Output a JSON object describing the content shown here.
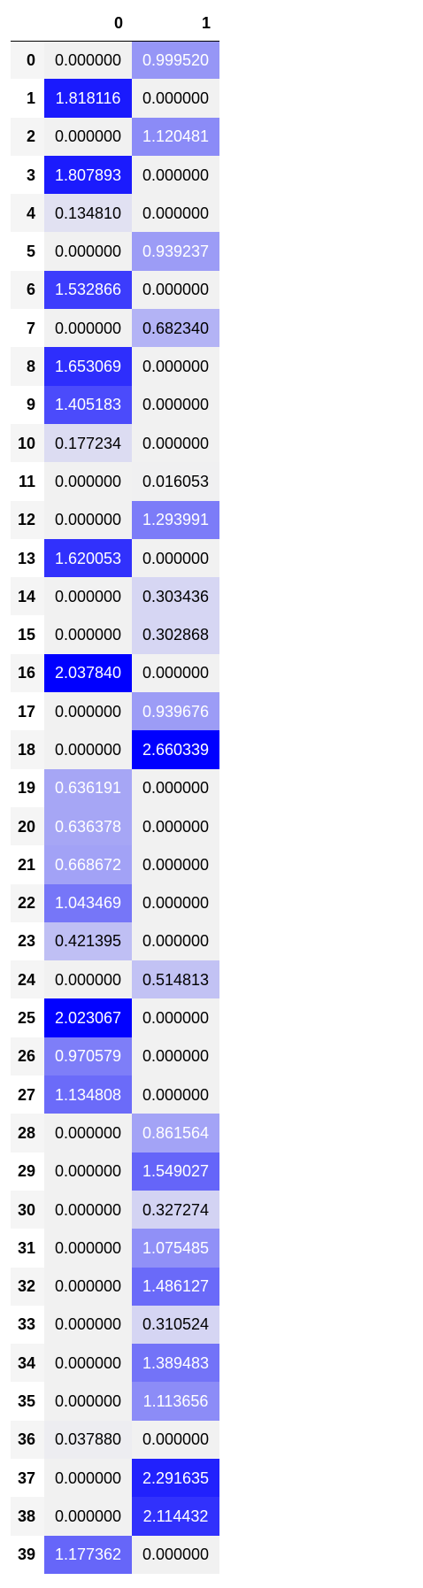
{
  "table": {
    "columns": [
      "0",
      "1"
    ],
    "index": [
      "0",
      "1",
      "2",
      "3",
      "4",
      "5",
      "6",
      "7",
      "8",
      "9",
      "10",
      "11",
      "12",
      "13",
      "14",
      "15",
      "16",
      "17",
      "18",
      "19",
      "20",
      "21",
      "22",
      "23",
      "24",
      "25",
      "26",
      "27",
      "28",
      "29",
      "30",
      "31",
      "32",
      "33",
      "34",
      "35",
      "36",
      "37",
      "38",
      "39"
    ],
    "rows": [
      [
        "0.000000",
        "0.999520"
      ],
      [
        "1.818116",
        "0.000000"
      ],
      [
        "0.000000",
        "1.120481"
      ],
      [
        "1.807893",
        "0.000000"
      ],
      [
        "0.134810",
        "0.000000"
      ],
      [
        "0.000000",
        "0.939237"
      ],
      [
        "1.532866",
        "0.000000"
      ],
      [
        "0.000000",
        "0.682340"
      ],
      [
        "1.653069",
        "0.000000"
      ],
      [
        "1.405183",
        "0.000000"
      ],
      [
        "0.177234",
        "0.000000"
      ],
      [
        "0.000000",
        "0.016053"
      ],
      [
        "0.000000",
        "1.293991"
      ],
      [
        "1.620053",
        "0.000000"
      ],
      [
        "0.000000",
        "0.303436"
      ],
      [
        "0.000000",
        "0.302868"
      ],
      [
        "2.037840",
        "0.000000"
      ],
      [
        "0.000000",
        "0.939676"
      ],
      [
        "0.000000",
        "2.660339"
      ],
      [
        "0.636191",
        "0.000000"
      ],
      [
        "0.636378",
        "0.000000"
      ],
      [
        "0.668672",
        "0.000000"
      ],
      [
        "1.043469",
        "0.000000"
      ],
      [
        "0.421395",
        "0.000000"
      ],
      [
        "0.000000",
        "0.514813"
      ],
      [
        "2.023067",
        "0.000000"
      ],
      [
        "0.970579",
        "0.000000"
      ],
      [
        "1.134808",
        "0.000000"
      ],
      [
        "0.000000",
        "0.861564"
      ],
      [
        "0.000000",
        "1.549027"
      ],
      [
        "0.000000",
        "0.327274"
      ],
      [
        "0.000000",
        "1.075485"
      ],
      [
        "0.000000",
        "1.486127"
      ],
      [
        "0.000000",
        "0.310524"
      ],
      [
        "0.000000",
        "1.389483"
      ],
      [
        "0.000000",
        "1.113656"
      ],
      [
        "0.037880",
        "0.000000"
      ],
      [
        "0.000000",
        "2.291635"
      ],
      [
        "0.000000",
        "2.114432"
      ],
      [
        "1.177362",
        "0.000000"
      ]
    ]
  },
  "gradient": {
    "low_color": "#f1f1f1",
    "high_color": "#0000ff",
    "column_max": [
      2.03784,
      2.660339
    ]
  }
}
